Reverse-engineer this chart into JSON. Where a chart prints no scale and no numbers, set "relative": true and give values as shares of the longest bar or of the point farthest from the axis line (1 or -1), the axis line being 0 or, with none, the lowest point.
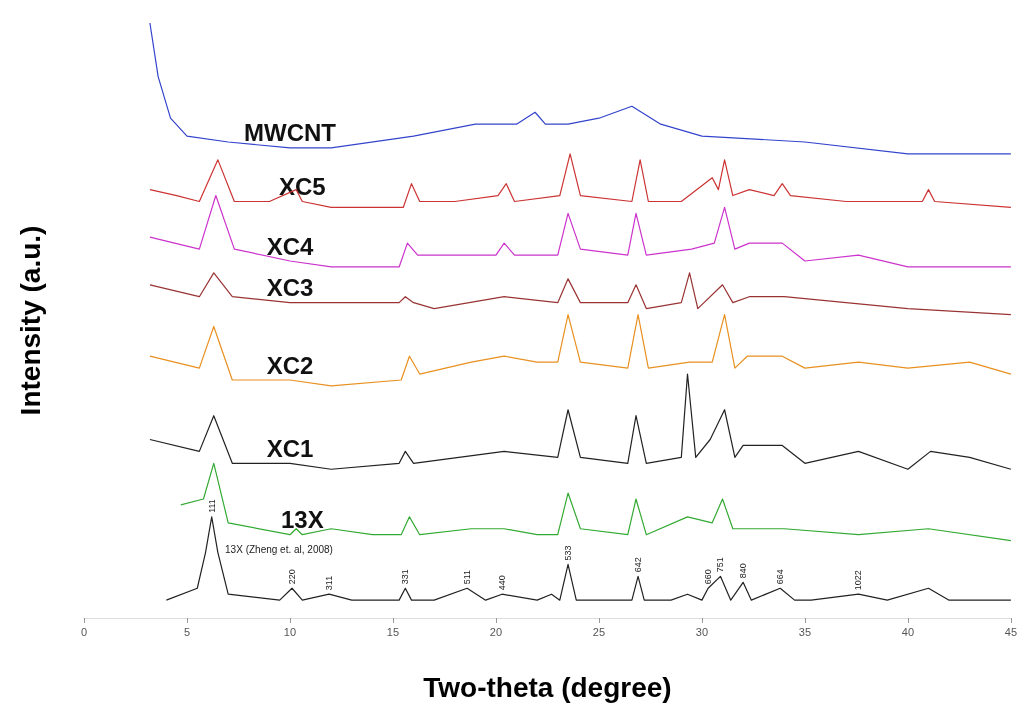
{
  "chart_data": {
    "type": "line",
    "relative": true,
    "xlabel": "Two-theta (degree)",
    "ylabel": "Intensity (a.u.)",
    "xlim": [
      0,
      45
    ],
    "xticks": [
      0,
      5,
      10,
      15,
      20,
      25,
      30,
      35,
      40,
      45
    ],
    "grid": false,
    "legend": false,
    "marker": "none",
    "line_style": "solid",
    "series": [
      {
        "name": "MWCNT",
        "color": "#3344cc",
        "x": [
          3.2,
          3.6,
          4.2,
          5,
          7,
          10,
          12,
          16,
          19,
          21,
          21.9,
          22.4,
          23.5,
          25,
          26.6,
          28,
          30,
          35,
          40,
          45
        ],
        "values": [
          1.0,
          0.91,
          0.84,
          0.81,
          0.8,
          0.79,
          0.79,
          0.81,
          0.83,
          0.83,
          0.85,
          0.83,
          0.83,
          0.84,
          0.86,
          0.83,
          0.81,
          0.8,
          0.78,
          0.78
        ]
      },
      {
        "name": "XC5",
        "color": "#cc3333",
        "x": [
          3.2,
          4.5,
          5.6,
          6.5,
          7.3,
          9,
          10.3,
          10.6,
          12,
          14,
          15.5,
          15.9,
          16.3,
          18,
          20.1,
          20.5,
          20.9,
          23.1,
          23.6,
          24.1,
          26.6,
          27,
          27.4,
          29,
          30.5,
          30.8,
          31.1,
          31.5,
          32.3,
          33.5,
          33.9,
          34.3,
          37,
          40.7,
          41,
          41.3,
          45
        ],
        "values": [
          0.72,
          0.71,
          0.7,
          0.77,
          0.7,
          0.7,
          0.72,
          0.7,
          0.69,
          0.69,
          0.69,
          0.73,
          0.7,
          0.7,
          0.71,
          0.73,
          0.7,
          0.71,
          0.78,
          0.71,
          0.7,
          0.77,
          0.7,
          0.7,
          0.74,
          0.72,
          0.77,
          0.71,
          0.72,
          0.71,
          0.73,
          0.71,
          0.7,
          0.7,
          0.72,
          0.7,
          0.69
        ]
      },
      {
        "name": "XC4",
        "color": "#cc33cc",
        "x": [
          3.2,
          5.6,
          6.4,
          7.3,
          10,
          12,
          15.3,
          15.7,
          16.2,
          20,
          20.4,
          20.9,
          23,
          23.5,
          24.1,
          26.4,
          26.8,
          27.3,
          29.5,
          30.6,
          31.1,
          31.6,
          32.3,
          33.9,
          35,
          37.6,
          40,
          45
        ],
        "values": [
          0.64,
          0.62,
          0.71,
          0.62,
          0.6,
          0.59,
          0.59,
          0.63,
          0.61,
          0.61,
          0.63,
          0.61,
          0.61,
          0.68,
          0.62,
          0.61,
          0.68,
          0.61,
          0.62,
          0.63,
          0.69,
          0.62,
          0.63,
          0.63,
          0.6,
          0.61,
          0.59,
          0.59
        ]
      },
      {
        "name": "XC3",
        "color": "#993333",
        "x": [
          3.2,
          5.6,
          6.3,
          7.2,
          10,
          15.3,
          15.6,
          16,
          17,
          20.4,
          23,
          23.5,
          24.1,
          26.4,
          26.8,
          27.3,
          29,
          29.4,
          29.8,
          31,
          31.5,
          32.3,
          34,
          40,
          45
        ],
        "values": [
          0.56,
          0.54,
          0.58,
          0.54,
          0.53,
          0.53,
          0.54,
          0.53,
          0.52,
          0.54,
          0.53,
          0.57,
          0.53,
          0.53,
          0.56,
          0.52,
          0.53,
          0.58,
          0.52,
          0.56,
          0.53,
          0.54,
          0.54,
          0.52,
          0.51
        ]
      },
      {
        "name": "XC2",
        "color": "#e89020",
        "x": [
          3.2,
          5.6,
          6.3,
          7.2,
          10,
          12,
          15.4,
          15.8,
          16.3,
          18.8,
          20.4,
          22,
          23,
          23.5,
          24.1,
          26.4,
          26.9,
          27.4,
          29.4,
          30.5,
          31.1,
          31.6,
          32.2,
          33.9,
          35,
          37.6,
          40,
          43,
          45
        ],
        "values": [
          0.44,
          0.42,
          0.49,
          0.4,
          0.4,
          0.39,
          0.4,
          0.44,
          0.41,
          0.43,
          0.44,
          0.43,
          0.43,
          0.51,
          0.43,
          0.42,
          0.51,
          0.42,
          0.43,
          0.43,
          0.51,
          0.42,
          0.44,
          0.44,
          0.42,
          0.43,
          0.42,
          0.43,
          0.41
        ]
      },
      {
        "name": "XC1",
        "color": "#222222",
        "x": [
          3.2,
          5.6,
          6.3,
          7.2,
          10,
          12,
          15.3,
          15.6,
          16,
          20.4,
          23,
          23.5,
          24.1,
          26.4,
          26.8,
          27.3,
          29,
          29.3,
          29.7,
          30.4,
          31.1,
          31.6,
          32,
          33.9,
          35,
          37.6,
          40,
          41.1,
          43,
          45
        ],
        "values": [
          0.3,
          0.28,
          0.34,
          0.26,
          0.26,
          0.25,
          0.26,
          0.28,
          0.26,
          0.28,
          0.27,
          0.35,
          0.27,
          0.26,
          0.34,
          0.26,
          0.27,
          0.41,
          0.27,
          0.3,
          0.35,
          0.27,
          0.29,
          0.29,
          0.26,
          0.28,
          0.25,
          0.28,
          0.27,
          0.25
        ]
      },
      {
        "name": "13X",
        "color": "#33aa33",
        "x": [
          4.7,
          5.8,
          6.3,
          7,
          10,
          10.3,
          10.6,
          12,
          14,
          15.4,
          15.8,
          16.3,
          18.8,
          20.4,
          22,
          23,
          23.5,
          24.1,
          26.4,
          26.8,
          27.3,
          29.3,
          30.5,
          31,
          31.5,
          32,
          34,
          37.6,
          41,
          45
        ],
        "values": [
          0.19,
          0.2,
          0.26,
          0.16,
          0.14,
          0.15,
          0.14,
          0.15,
          0.14,
          0.14,
          0.17,
          0.14,
          0.15,
          0.15,
          0.14,
          0.14,
          0.21,
          0.15,
          0.14,
          0.2,
          0.14,
          0.17,
          0.16,
          0.2,
          0.15,
          0.15,
          0.15,
          0.14,
          0.15,
          0.13
        ]
      },
      {
        "color": "#222222",
        "x": [
          4,
          5.5,
          5.9,
          6.2,
          6.5,
          7,
          9.5,
          10.1,
          10.6,
          11.9,
          13,
          15.3,
          15.6,
          15.9,
          17,
          18.6,
          19.5,
          20.3,
          22,
          22.7,
          23.1,
          23.5,
          23.9,
          26,
          26.6,
          26.9,
          27.2,
          28.5,
          29.3,
          30,
          30.3,
          30.9,
          31.4,
          32,
          32.4,
          33.8,
          34.5,
          35.3,
          37.6,
          39,
          41,
          42,
          45
        ],
        "values": [
          0.03,
          0.05,
          0.11,
          0.17,
          0.11,
          0.04,
          0.03,
          0.05,
          0.03,
          0.04,
          0.03,
          0.03,
          0.05,
          0.03,
          0.03,
          0.05,
          0.03,
          0.04,
          0.03,
          0.04,
          0.03,
          0.09,
          0.03,
          0.03,
          0.03,
          0.07,
          0.03,
          0.03,
          0.04,
          0.03,
          0.05,
          0.07,
          0.03,
          0.06,
          0.03,
          0.05,
          0.03,
          0.03,
          0.04,
          0.03,
          0.05,
          0.03,
          0.03
        ]
      }
    ],
    "annotations": [
      "13X (Zheng et. al, 2008)",
      {
        "text": "111",
        "x": 6.2,
        "y": 0.17
      },
      {
        "text": "220",
        "x": 10.1,
        "y": 0.05
      },
      {
        "text": "311",
        "x": 11.9,
        "y": 0.04
      },
      {
        "text": "331",
        "x": 15.6,
        "y": 0.05
      },
      {
        "text": "511",
        "x": 18.6,
        "y": 0.05
      },
      {
        "text": "440",
        "x": 20.3,
        "y": 0.04
      },
      {
        "text": "533",
        "x": 23.5,
        "y": 0.09
      },
      {
        "text": "642",
        "x": 26.9,
        "y": 0.07
      },
      {
        "text": "660",
        "x": 30.3,
        "y": 0.05
      },
      {
        "text": "751",
        "x": 30.9,
        "y": 0.07
      },
      {
        "text": "840",
        "x": 32,
        "y": 0.06
      },
      {
        "text": "664",
        "x": 33.8,
        "y": 0.05
      },
      {
        "text": "1022",
        "x": 37.6,
        "y": 0.04
      }
    ]
  }
}
